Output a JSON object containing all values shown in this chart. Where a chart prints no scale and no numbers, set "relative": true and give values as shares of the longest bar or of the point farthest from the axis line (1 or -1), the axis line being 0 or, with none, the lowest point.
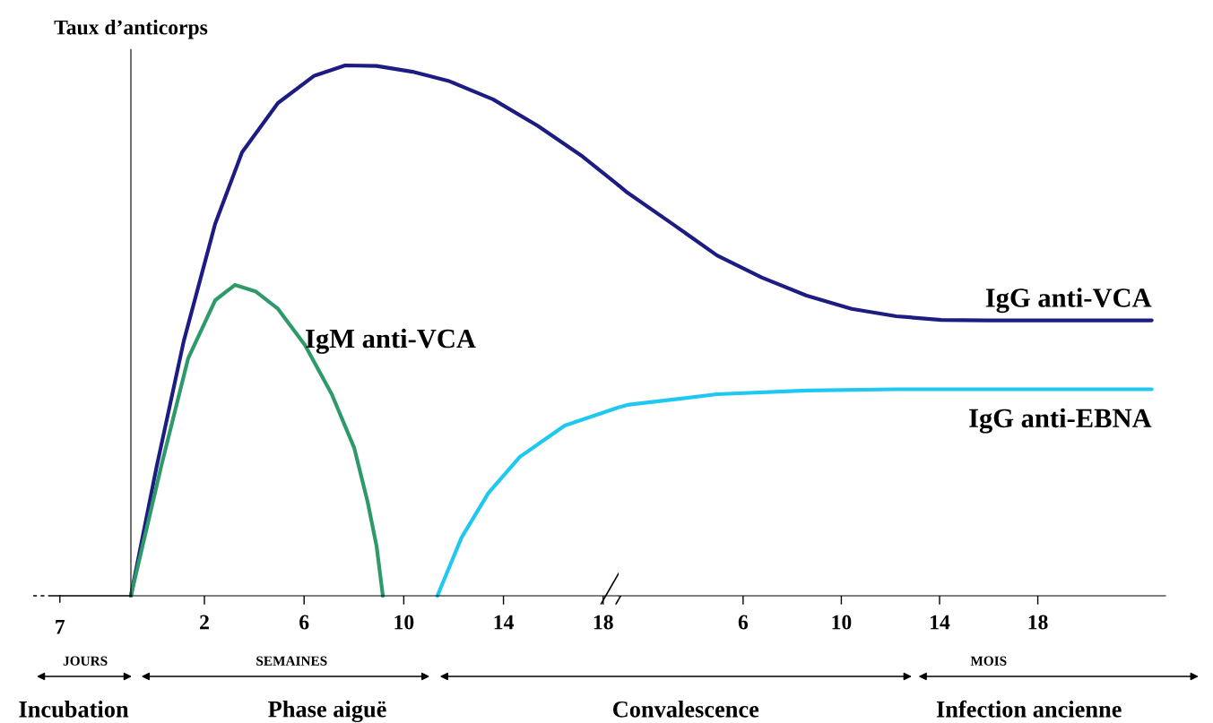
{
  "chart_data": [
    {
      "type": "line",
      "relative": true,
      "ylabel": "Taux d’anticorps",
      "xlim": [
        -0.95,
        18.62
      ],
      "xticks": [
        2,
        6,
        10,
        14,
        18
      ],
      "marker": "none",
      "line_style": "solid",
      "series": [
        {
          "color": "#1c1c82",
          "x": [
            -0.95,
            0.09,
            1.17,
            2.43,
            3.51,
            4.95,
            6.39,
            7.65,
            8.91,
            10.35,
            11.78,
            13.58,
            15.38,
            17.18,
            18.62
          ],
          "values": [
            0,
            0.245,
            0.48,
            0.701,
            0.836,
            0.929,
            0.98,
            1,
            0.999,
            0.988,
            0.971,
            0.936,
            0.886,
            0.828,
            0.774
          ]
        },
        {
          "name": "IgM anti-VCA",
          "color": "#2e9a6a",
          "x": [
            -0.95,
            0.27,
            1.35,
            2.43,
            3.22,
            4.05,
            4.95,
            6.03,
            7.11,
            8.01,
            8.55,
            8.91,
            9.16
          ],
          "values": [
            0,
            0.245,
            0.448,
            0.557,
            0.586,
            0.574,
            0.541,
            0.473,
            0.38,
            0.279,
            0.177,
            0.093,
            0
          ]
        },
        {
          "color": "#1ec8f0",
          "x": [
            11.35,
            12.32,
            13.4,
            14.66,
            16.46,
            18.62
          ],
          "values": [
            0,
            0.11,
            0.194,
            0.262,
            0.321,
            0.355
          ]
        }
      ],
      "annotations": [
        "7",
        "JOURS",
        "SEMAINES",
        "Incubation",
        "Phase aiguë"
      ]
    },
    {
      "type": "line",
      "relative": true,
      "xlim": [
        0.93,
        23.2
      ],
      "xticks": [
        6,
        10,
        14,
        18
      ],
      "marker": "none",
      "line_style": "solid",
      "series": [
        {
          "name": "IgG anti-VCA",
          "color": "#1c1c82",
          "x": [
            0.93,
            1.29,
            3.12,
            4.94,
            6.77,
            8.59,
            10.42,
            12.24,
            14.07,
            15.89,
            22.64
          ],
          "values": [
            1,
            0.982,
            0.906,
            0.829,
            0.775,
            0.731,
            0.699,
            0.681,
            0.672,
            0.671,
            0.671
          ]
        },
        {
          "name": "IgG anti-EBNA",
          "color": "#1ec8f0",
          "x": [
            0.93,
            1.29,
            4.94,
            8.59,
            12.24,
            22.64
          ],
          "values": [
            0.459,
            0.465,
            0.491,
            0.5,
            0.503,
            0.503
          ]
        }
      ],
      "annotations": [
        "MOIS",
        "Convalescence",
        "Infection ancienne"
      ]
    }
  ]
}
